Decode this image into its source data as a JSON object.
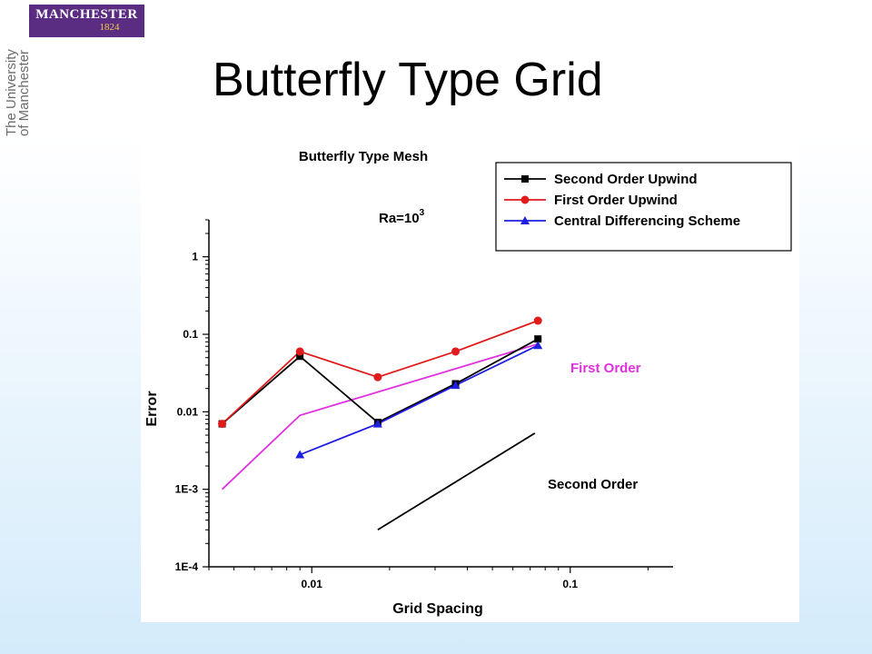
{
  "logo": {
    "name": "MANCHESTER",
    "year": "1824"
  },
  "side_text": {
    "line1": "The University",
    "line2": "of Manchester"
  },
  "title": "Butterfly Type Grid",
  "colors": {
    "logo_bg": "#5b2d82",
    "first_order": "#e01b1b",
    "second_order": "#000000",
    "central": "#1f1fe0",
    "reference": "#e030e0"
  },
  "chart_data": {
    "type": "line",
    "title": "Butterfly Type Mesh",
    "xlabel": "Grid Spacing",
    "ylabel": "Error",
    "xscale": "log",
    "yscale": "log",
    "xlim": [
      0.004,
      0.25
    ],
    "ylim": [
      0.0001,
      3
    ],
    "xtick_labels": [
      {
        "value": 0.01,
        "label": "0.01"
      },
      {
        "value": 0.1,
        "label": "0.1"
      }
    ],
    "ytick_labels": [
      {
        "value": 1,
        "label": "1"
      },
      {
        "value": 0.1,
        "label": "0.1"
      },
      {
        "value": 0.01,
        "label": "0.01"
      },
      {
        "value": 0.001,
        "label": "1E-3"
      },
      {
        "value": 0.0001,
        "label": "1E-4"
      }
    ],
    "annotation": {
      "base": "Ra=10",
      "exponent": "3"
    },
    "legend_position": "top-right",
    "series": [
      {
        "name": "Second Order Upwind",
        "color": "#000000",
        "marker": "square",
        "x": [
          0.0045,
          0.009,
          0.018,
          0.036,
          0.075
        ],
        "y": [
          0.007,
          0.052,
          0.0073,
          0.023,
          0.087
        ]
      },
      {
        "name": "First Order Upwind",
        "color": "#e01b1b",
        "marker": "circle",
        "x": [
          0.0045,
          0.009,
          0.018,
          0.036,
          0.075
        ],
        "y": [
          0.007,
          0.06,
          0.028,
          0.06,
          0.15
        ]
      },
      {
        "name": "Central Differencing Scheme",
        "color": "#1f1fe0",
        "marker": "triangle",
        "x": [
          0.009,
          0.018,
          0.036,
          0.075
        ],
        "y": [
          0.0028,
          0.007,
          0.022,
          0.072
        ]
      }
    ],
    "reference_lines": [
      {
        "label": "First Order",
        "color": "#e030e0",
        "x": [
          0.0045,
          0.009,
          0.075
        ],
        "y": [
          0.001,
          0.009,
          0.075
        ]
      },
      {
        "label": "Second Order",
        "color": "#000000",
        "x": [
          0.018,
          0.073
        ],
        "y": [
          0.0003,
          0.0053
        ]
      }
    ]
  }
}
